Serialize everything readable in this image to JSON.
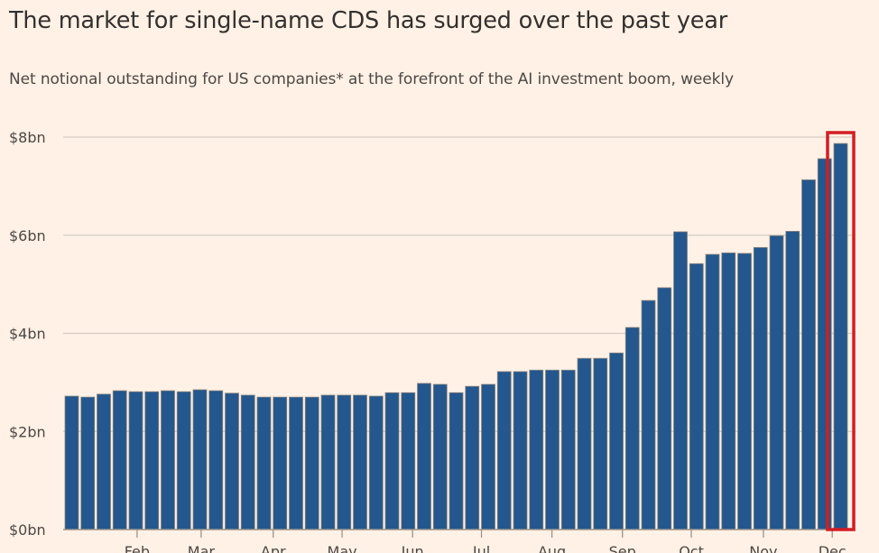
{
  "title": "The market for single-name CDS has surged over the past year",
  "subtitle": "Net notional outstanding for US companies* at the forefront of the AI investment boom, weekly",
  "colors": {
    "background": "#fff1e5",
    "bar": "#23578d",
    "bar_outline": "#8a8580",
    "gridline": "#d3ccc3",
    "highlight_box": "#d21d24",
    "text": "#33302e"
  },
  "chart_data": {
    "type": "bar",
    "title": "The market for single-name CDS has surged over the past year",
    "subtitle": "Net notional outstanding for US companies* at the forefront of the AI investment boom, weekly",
    "xlabel": "",
    "ylabel": "",
    "unit": "$bn",
    "ylim": [
      0,
      8
    ],
    "y_ticks": [
      {
        "value": 0,
        "label": "$0bn"
      },
      {
        "value": 2,
        "label": "$2bn"
      },
      {
        "value": 4,
        "label": "$4bn"
      },
      {
        "value": 6,
        "label": "$6bn"
      },
      {
        "value": 8,
        "label": "$8bn"
      }
    ],
    "grid": true,
    "x_ticks": [
      {
        "label": "Feb",
        "week_index": 4.5
      },
      {
        "label": "Mar",
        "week_index": 8.5
      },
      {
        "label": "Apr",
        "week_index": 13.0
      },
      {
        "label": "May",
        "week_index": 17.3
      },
      {
        "label": "Jun",
        "week_index": 21.7
      },
      {
        "label": "Jul",
        "week_index": 26.0
      },
      {
        "label": "Aug",
        "week_index": 30.4
      },
      {
        "label": "Sep",
        "week_index": 34.8
      },
      {
        "label": "Oct",
        "week_index": 39.1
      },
      {
        "label": "Nov",
        "week_index": 43.6
      },
      {
        "label": "Dec",
        "week_index": 47.9
      }
    ],
    "series": [
      {
        "name": "Net notional outstanding",
        "values": [
          2.72,
          2.7,
          2.76,
          2.83,
          2.81,
          2.81,
          2.83,
          2.81,
          2.85,
          2.83,
          2.78,
          2.74,
          2.7,
          2.7,
          2.7,
          2.7,
          2.74,
          2.74,
          2.74,
          2.72,
          2.79,
          2.79,
          2.98,
          2.96,
          2.79,
          2.92,
          2.96,
          3.22,
          3.22,
          3.25,
          3.25,
          3.25,
          3.49,
          3.49,
          3.6,
          4.12,
          4.67,
          4.93,
          6.07,
          5.42,
          5.61,
          5.64,
          5.63,
          5.75,
          5.99,
          6.08,
          7.13,
          7.56,
          7.87
        ]
      }
    ],
    "annotations": [
      {
        "type": "highlight-box",
        "target_week_index": 48,
        "description": "Latest week highlighted with red outline"
      }
    ],
    "legend": "none"
  }
}
